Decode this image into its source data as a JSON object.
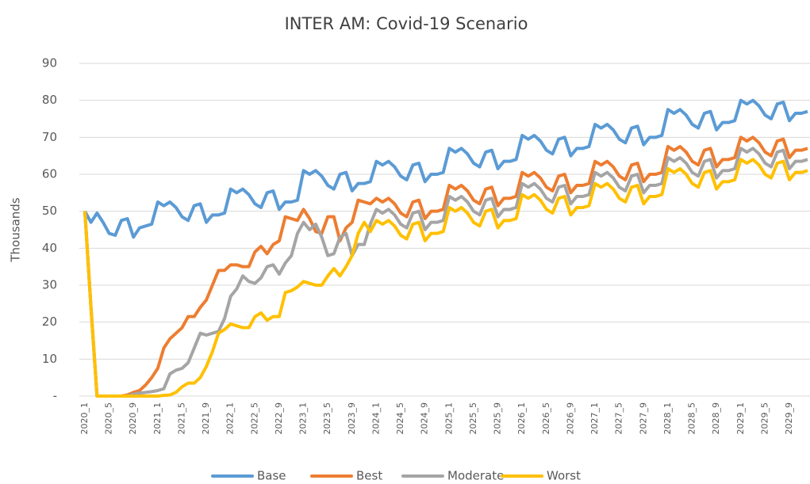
{
  "chart_data": {
    "type": "line",
    "title": "INTER AM: Covid-19  Scenario",
    "y_label": "Thousands",
    "categories": [
      "2020_1",
      null,
      null,
      null,
      "2020_5",
      null,
      null,
      null,
      "2020_9",
      null,
      null,
      null,
      "2021_1",
      null,
      null,
      null,
      "2021_5",
      null,
      null,
      null,
      "2021_9",
      null,
      null,
      null,
      "2022_1",
      null,
      null,
      null,
      "2022_5",
      null,
      null,
      null,
      "2022_9",
      null,
      null,
      null,
      "2023_1",
      null,
      null,
      null,
      "2023_5",
      null,
      null,
      null,
      "2023_9",
      null,
      null,
      null,
      "2024_1",
      null,
      null,
      null,
      "2024_5",
      null,
      null,
      null,
      "2024_9",
      null,
      null,
      null,
      "2025_1",
      null,
      null,
      null,
      "2025_5",
      null,
      null,
      null,
      "2025_9",
      null,
      null,
      null,
      "2026_1",
      null,
      null,
      null,
      "2026_5",
      null,
      null,
      null,
      "2026_9",
      null,
      null,
      null,
      "2027_1",
      null,
      null,
      null,
      "2027_5",
      null,
      null,
      null,
      "2027_9",
      null,
      null,
      null,
      "2028_1",
      null,
      null,
      null,
      "2028_5",
      null,
      null,
      null,
      "2028_9",
      null,
      null,
      null,
      "2029_1",
      null,
      null,
      null,
      "2029_5",
      null,
      null,
      null,
      "2029_9",
      null,
      null,
      null
    ],
    "series": [
      {
        "name": "Base",
        "color": "#5b9bd5",
        "values": [
          50,
          47,
          49.5,
          47,
          44,
          43.5,
          47.5,
          48,
          43,
          45.5,
          46,
          46.5,
          52.5,
          51.5,
          52.5,
          51,
          48.5,
          47.5,
          51.5,
          52,
          47,
          49,
          49,
          49.5,
          56,
          55,
          56,
          54.5,
          52,
          51,
          55,
          55.5,
          50.5,
          52.5,
          52.5,
          53,
          61,
          60,
          61,
          59.5,
          57,
          56,
          60,
          60.5,
          55.5,
          57.5,
          57.5,
          58,
          63.5,
          62.5,
          63.5,
          62,
          59.5,
          58.5,
          62.5,
          63,
          58,
          60,
          60,
          60.5,
          67,
          66,
          67,
          65.5,
          63,
          62,
          66,
          66.5,
          61.5,
          63.5,
          63.5,
          64,
          70.5,
          69.5,
          70.5,
          69,
          66.5,
          65.5,
          69.5,
          70,
          65,
          67,
          67,
          67.5,
          73.5,
          72.5,
          73.5,
          72,
          69.5,
          68.5,
          72.5,
          73,
          68,
          70,
          70,
          70.5,
          77.5,
          76.5,
          77.5,
          76,
          73.5,
          72.5,
          76.5,
          77,
          72,
          74,
          74,
          74.5,
          80,
          79,
          80,
          78.5,
          76,
          75,
          79,
          79.5,
          74.5,
          76.5,
          76.5,
          77
        ]
      },
      {
        "name": "Best",
        "color": "#ed7d31",
        "values": [
          50,
          24,
          0,
          0,
          0,
          0,
          0,
          0.3,
          1,
          1.5,
          3,
          5,
          7.5,
          13,
          15.5,
          17,
          18.5,
          21.5,
          21.5,
          24,
          26,
          30,
          34,
          34,
          35.5,
          35.5,
          35,
          35,
          39,
          40.5,
          38.5,
          41,
          42,
          48.5,
          48,
          47.5,
          50.5,
          48,
          44.5,
          44,
          48.5,
          48.5,
          42,
          45.5,
          47,
          53,
          52.5,
          52,
          53.5,
          52.5,
          53.5,
          52,
          49.5,
          48.5,
          52.5,
          53,
          48,
          50,
          50,
          50.5,
          57,
          56,
          57,
          55.5,
          53,
          52,
          56,
          56.5,
          51.5,
          53.5,
          53.5,
          54,
          60.5,
          59.5,
          60.5,
          59,
          56.5,
          55.5,
          59.5,
          60,
          55,
          57,
          57,
          57.5,
          63.5,
          62.5,
          63.5,
          62,
          59.5,
          58.5,
          62.5,
          63,
          58,
          60,
          60,
          60.5,
          67.5,
          66.5,
          67.5,
          66,
          63.5,
          62.5,
          66.5,
          67,
          62,
          64,
          64,
          64.5,
          70,
          69,
          70,
          68.5,
          66,
          65,
          69,
          69.5,
          64.5,
          66.5,
          66.5,
          67
        ]
      },
      {
        "name": "Moderate",
        "color": "#a5a5a5",
        "values": [
          50,
          24,
          0,
          0,
          0,
          0,
          0,
          0,
          0.5,
          0.8,
          1,
          1.2,
          1.5,
          2,
          6,
          7,
          7.5,
          9,
          13,
          17,
          16.5,
          17,
          17.5,
          21,
          27,
          29,
          32.5,
          31,
          30.5,
          32,
          35,
          35.5,
          33,
          36,
          38,
          44,
          47,
          45,
          46.5,
          43,
          38,
          38.5,
          43,
          44,
          38,
          41,
          41,
          46.5,
          50.5,
          49.5,
          50.5,
          49,
          46.5,
          45.5,
          49.5,
          50,
          45,
          47,
          47,
          47.5,
          54,
          53,
          54,
          52.5,
          50,
          49,
          53,
          53.5,
          48.5,
          50.5,
          50.5,
          51,
          57.5,
          56.5,
          57.5,
          56,
          53.5,
          52.5,
          56.5,
          57,
          52,
          54,
          54,
          54.5,
          60.5,
          59.5,
          60.5,
          59,
          56.5,
          55.5,
          59.5,
          60,
          55,
          57,
          57,
          57.5,
          64.5,
          63.5,
          64.5,
          63,
          60.5,
          59.5,
          63.5,
          64,
          59,
          61,
          61,
          61.5,
          67,
          66,
          67,
          65.5,
          63,
          62,
          66,
          66.5,
          61.5,
          63.5,
          63.5,
          64
        ]
      },
      {
        "name": "Worst",
        "color": "#ffc000",
        "values": [
          50,
          24,
          0,
          0,
          0,
          0,
          0,
          0,
          0,
          0,
          0,
          0,
          0,
          0.2,
          0.3,
          1,
          2.5,
          3.5,
          3.5,
          5,
          8,
          12,
          17,
          18,
          19.5,
          19,
          18.5,
          18.5,
          21.5,
          22.5,
          20.5,
          21.5,
          21.5,
          28,
          28.5,
          29.5,
          31,
          30.5,
          30,
          30,
          32.5,
          34.5,
          32.5,
          35,
          38,
          44,
          47,
          44.5,
          47.5,
          46.5,
          47.5,
          46,
          43.5,
          42.5,
          46.5,
          47,
          42,
          44,
          44,
          44.5,
          51,
          50,
          51,
          49.5,
          47,
          46,
          50,
          50.5,
          45.5,
          47.5,
          47.5,
          48,
          54.5,
          53.5,
          54.5,
          53,
          50.5,
          49.5,
          53.5,
          54,
          49,
          51,
          51,
          51.5,
          57.5,
          56.5,
          57.5,
          56,
          53.5,
          52.5,
          56.5,
          57,
          52,
          54,
          54,
          54.5,
          61.5,
          60.5,
          61.5,
          60,
          57.5,
          56.5,
          60.5,
          61,
          56,
          58,
          58,
          58.5,
          64,
          63,
          64,
          62.5,
          60,
          59,
          63,
          63.5,
          58.5,
          60.5,
          60.5,
          61
        ]
      }
    ],
    "ylim": [
      0,
      90
    ],
    "yticks": [
      {
        "value": 0,
        "label": "-"
      },
      10,
      20,
      30,
      40,
      50,
      60,
      70,
      80,
      90
    ],
    "grid": true,
    "legend": "bottom"
  }
}
